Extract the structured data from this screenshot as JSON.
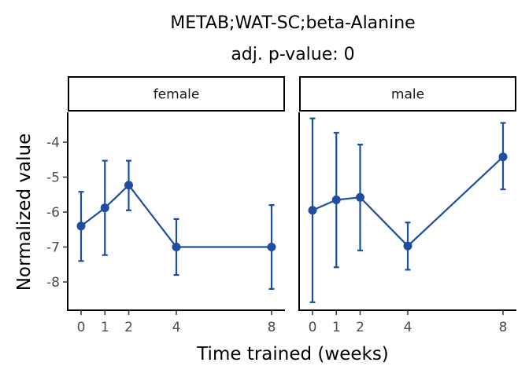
{
  "chart_data": {
    "type": "line",
    "title": "METAB;WAT-SC;beta-Alanine",
    "subtitle": "adj. p-value: 0",
    "xlabel": "Time trained (weeks)",
    "ylabel": "Normalized value",
    "x_ticks": [
      0,
      1,
      2,
      4,
      8
    ],
    "y_ticks": [
      -4,
      -5,
      -6,
      -7,
      -8
    ],
    "ylim": [
      -8.7,
      -3.2
    ],
    "color": "#1f4e9e",
    "panels": [
      {
        "name": "female",
        "x": [
          0,
          1,
          2,
          4,
          8
        ],
        "y": [
          -6.4,
          -5.88,
          -5.23,
          -7.0,
          -7.0
        ],
        "ymin": [
          -7.4,
          -7.23,
          -5.95,
          -7.8,
          -8.2
        ],
        "ymax": [
          -5.42,
          -4.53,
          -4.53,
          -6.2,
          -5.8
        ]
      },
      {
        "name": "male",
        "x": [
          0,
          1,
          2,
          4,
          8
        ],
        "y": [
          -5.95,
          -5.65,
          -5.58,
          -6.97,
          -4.42
        ],
        "ymin": [
          -8.58,
          -7.58,
          -7.1,
          -7.65,
          -5.35
        ],
        "ymax": [
          -3.32,
          -3.73,
          -4.07,
          -6.3,
          -3.45
        ]
      }
    ]
  }
}
